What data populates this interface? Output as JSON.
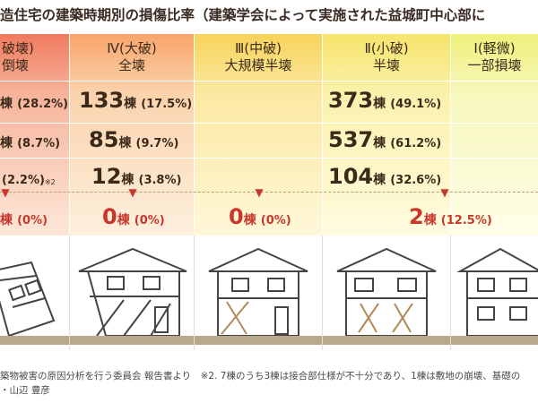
{
  "title": "造住宅の建築時期別の損傷比率（建築学会によって実施された益城町中心部に",
  "columns": [
    {
      "id": "v",
      "line1": "破壊)",
      "line2": "倒壊"
    },
    {
      "id": "iv",
      "line1": "Ⅳ(大破)",
      "line2": "全壊"
    },
    {
      "id": "iii",
      "line1": "Ⅲ(中破)",
      "line2": "大規模半壊"
    },
    {
      "id": "ii",
      "line1": "Ⅱ(小破)",
      "line2": "半壊"
    },
    {
      "id": "i",
      "line1": "Ⅰ(軽微)",
      "line2": "一部損壊"
    }
  ],
  "rows": [
    {
      "v_unit": "棟",
      "v_pct": "(28.2%)",
      "iv_num": "133",
      "iv_unit": "棟",
      "iv_pct": "(17.5%)",
      "ii_num": "373",
      "ii_unit": "棟",
      "ii_pct": "(49.1%)"
    },
    {
      "v_unit": "棟",
      "v_pct": "(8.7%)",
      "iv_num": "85",
      "iv_unit": "棟",
      "iv_pct": "(9.7%)",
      "ii_num": "537",
      "ii_unit": "棟",
      "ii_pct": "(61.2%)"
    },
    {
      "v_unit": "",
      "v_pct": "(2.2%)",
      "v_note": "※2",
      "iv_num": "12",
      "iv_unit": "棟",
      "iv_pct": "(3.8%)",
      "ii_num": "104",
      "ii_unit": "棟",
      "ii_pct": "(32.6%)"
    }
  ],
  "last_row": {
    "v_unit": "棟",
    "v_pct": "(0%)",
    "iv_num": "0",
    "iv_unit": "棟",
    "iv_pct": "(0%)",
    "iii_num": "0",
    "iii_unit": "棟",
    "iii_pct": "(0%)",
    "ii_num": "2",
    "ii_unit": "棟",
    "ii_pct": "(12.5%)"
  },
  "footer": {
    "line1": "築物被害の原因分析を行う委員会 報告書より　※2. 7棟のうち3棟は接合部仕様が不十分であり、1棟は敷地の崩壊、基礎の",
    "line2": "・山辺 豊彦"
  },
  "colors": {
    "accent_red": "#c8372c"
  }
}
